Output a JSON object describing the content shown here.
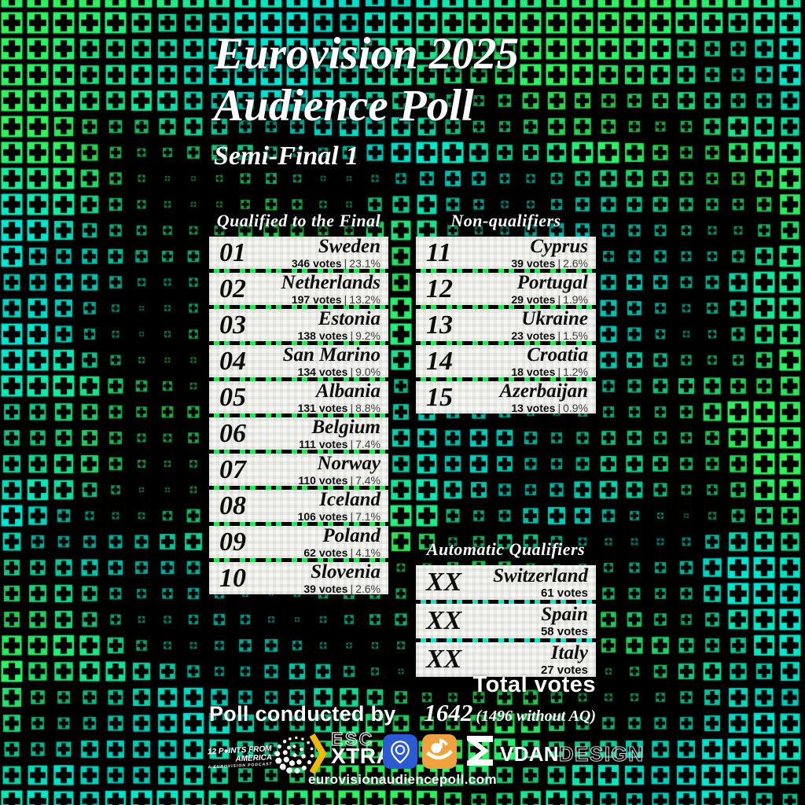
{
  "title": {
    "line1": "Eurovision 2025",
    "line2": "Audience Poll",
    "subtitle": "Semi-Final 1"
  },
  "sections": {
    "separator": "|",
    "qualified": {
      "header": "Qualified to the Final",
      "entries": [
        {
          "rank": "01",
          "country": "Sweden",
          "votes": "346 votes",
          "pct": "23.1%"
        },
        {
          "rank": "02",
          "country": "Netherlands",
          "votes": "197 votes",
          "pct": "13.2%"
        },
        {
          "rank": "03",
          "country": "Estonia",
          "votes": "138 votes",
          "pct": "9.2%"
        },
        {
          "rank": "04",
          "country": "San Marino",
          "votes": "134 votes",
          "pct": "9.0%"
        },
        {
          "rank": "05",
          "country": "Albania",
          "votes": "131 votes",
          "pct": "8.8%"
        },
        {
          "rank": "06",
          "country": "Belgium",
          "votes": "111 votes",
          "pct": "7.4%"
        },
        {
          "rank": "07",
          "country": "Norway",
          "votes": "110 votes",
          "pct": "7.4%"
        },
        {
          "rank": "08",
          "country": "Iceland",
          "votes": "106 votes",
          "pct": "7.1%"
        },
        {
          "rank": "09",
          "country": "Poland",
          "votes": "62 votes",
          "pct": "4.1%"
        },
        {
          "rank": "10",
          "country": "Slovenia",
          "votes": "39 votes",
          "pct": "2.6%"
        }
      ]
    },
    "non_qualifiers": {
      "header": "Non-qualifiers",
      "entries": [
        {
          "rank": "11",
          "country": "Cyprus",
          "votes": "39 votes",
          "pct": "2.6%"
        },
        {
          "rank": "12",
          "country": "Portugal",
          "votes": "29 votes",
          "pct": "1.9%"
        },
        {
          "rank": "13",
          "country": "Ukraine",
          "votes": "23 votes",
          "pct": "1.5%"
        },
        {
          "rank": "14",
          "country": "Croatia",
          "votes": "18 votes",
          "pct": "1.2%"
        },
        {
          "rank": "15",
          "country": "Azerbaijan",
          "votes": "13 votes",
          "pct": "0.9%"
        }
      ]
    },
    "automatic": {
      "header": "Automatic Qualifiers",
      "entries": [
        {
          "rank": "XX",
          "country": "Switzerland",
          "votes": "61 votes"
        },
        {
          "rank": "XX",
          "country": "Spain",
          "votes": "58 votes"
        },
        {
          "rank": "XX",
          "country": "Italy",
          "votes": "27 votes"
        }
      ]
    }
  },
  "totals": {
    "label": "Total votes",
    "value": "1642",
    "note": "(1496 without AQ)"
  },
  "footer": {
    "conducted_by": "Poll conducted by",
    "url": "eurovisionaudiencepoll.com",
    "logos": {
      "twelve_points": {
        "line1": "12 P●INTS FROM AMERICA",
        "line2": "A EUROVISION PODCAST",
        "icon": "dotted-globe-icon"
      },
      "escxtra": {
        "top": "ESC",
        "bottom": "XTRA"
      },
      "pin_app": {
        "icon": "location-pin-app-icon"
      },
      "note_app": {
        "icon": "eye-music-note-app-icon"
      },
      "sigma": {
        "icon": "sigma-logo"
      },
      "vdan": {
        "bold": "VDAN",
        "light": "DESIGN"
      }
    }
  },
  "colors": {
    "background": "#000000",
    "cyan": "#00e6d2",
    "green": "#2ff25c",
    "box_bg": "#f6f6f3",
    "accent_yellow": "#f4b70a",
    "pin_blue": "#2c5ad3",
    "note_orange": "#f0a23f"
  },
  "chart_data": {
    "type": "table",
    "title": "Eurovision 2025 Audience Poll — Semi-Final 1",
    "columns": [
      "rank",
      "country",
      "votes",
      "percent"
    ],
    "groups": [
      {
        "name": "Qualified to the Final",
        "rows": [
          [
            "01",
            "Sweden",
            346,
            "23.1%"
          ],
          [
            "02",
            "Netherlands",
            197,
            "13.2%"
          ],
          [
            "03",
            "Estonia",
            138,
            "9.2%"
          ],
          [
            "04",
            "San Marino",
            134,
            "9.0%"
          ],
          [
            "05",
            "Albania",
            131,
            "8.8%"
          ],
          [
            "06",
            "Belgium",
            111,
            "7.4%"
          ],
          [
            "07",
            "Norway",
            110,
            "7.4%"
          ],
          [
            "08",
            "Iceland",
            106,
            "7.1%"
          ],
          [
            "09",
            "Poland",
            62,
            "4.1%"
          ],
          [
            "10",
            "Slovenia",
            39,
            "2.6%"
          ]
        ]
      },
      {
        "name": "Non-qualifiers",
        "rows": [
          [
            "11",
            "Cyprus",
            39,
            "2.6%"
          ],
          [
            "12",
            "Portugal",
            29,
            "1.9%"
          ],
          [
            "13",
            "Ukraine",
            23,
            "1.5%"
          ],
          [
            "14",
            "Croatia",
            18,
            "1.2%"
          ],
          [
            "15",
            "Azerbaijan",
            13,
            "0.9%"
          ]
        ]
      },
      {
        "name": "Automatic Qualifiers",
        "rows": [
          [
            "XX",
            "Switzerland",
            61,
            null
          ],
          [
            "XX",
            "Spain",
            58,
            null
          ],
          [
            "XX",
            "Italy",
            27,
            null
          ]
        ]
      }
    ],
    "total_votes": 1642,
    "total_votes_without_aq": 1496
  }
}
